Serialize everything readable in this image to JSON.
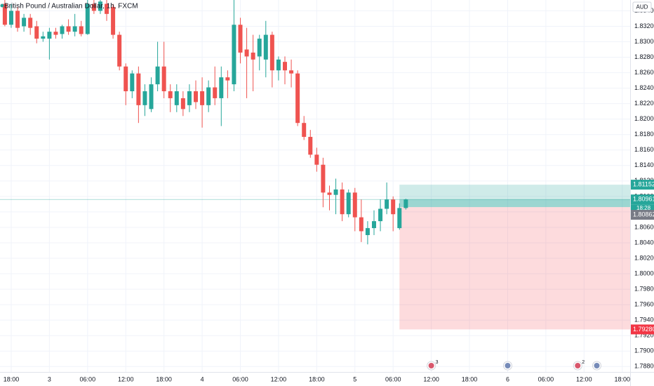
{
  "chart_data": {
    "type": "candlestick",
    "title": "British Pound / Australian Dollar, 1h, FXCM",
    "currency": "AUD",
    "up_color": "#26a69a",
    "down_color": "#ef5350",
    "grid": true,
    "x": [
      -1,
      0,
      1,
      2,
      3,
      4,
      5,
      6,
      7,
      8,
      9,
      10,
      11,
      12,
      13,
      14,
      15,
      16,
      17,
      18,
      19,
      20,
      21,
      22,
      23,
      24,
      25,
      26,
      27,
      28,
      29,
      30,
      31,
      32,
      33,
      34,
      35,
      36,
      37,
      38,
      39,
      40,
      41,
      42,
      43,
      44,
      45,
      46,
      47,
      48,
      49,
      50,
      51,
      52,
      53,
      54,
      55,
      56,
      57,
      58,
      59,
      60,
      61,
      62
    ],
    "open": [
      1.8349,
      1.8322,
      1.834,
      1.832,
      1.8331,
      1.832,
      1.8304,
      1.8304,
      1.8313,
      1.831,
      1.832,
      1.8313,
      1.832,
      1.831,
      1.8349,
      1.834,
      1.8349,
      1.8345,
      1.8309,
      1.8268,
      1.8236,
      1.8259,
      1.8218,
      1.8213,
      1.8245,
      1.8268,
      1.8236,
      1.8218,
      1.8227,
      1.8218,
      1.8236,
      1.8236,
      1.8218,
      1.8241,
      1.8227,
      1.8254,
      1.8245,
      1.8322,
      1.829,
      1.8286,
      1.8281,
      1.8277,
      1.8309,
      1.8263,
      1.8274,
      1.8263,
      1.8259,
      1.8195,
      1.8177,
      1.8154,
      1.8141,
      1.8105,
      1.8102,
      1.8109,
      1.8077,
      1.8105,
      1.8073,
      1.805,
      1.8059,
      1.8068,
      1.8084,
      1.8096,
      1.8059,
      1.8085
    ],
    "high": [
      1.8354,
      1.8349,
      1.8345,
      1.8336,
      1.8336,
      1.8327,
      1.8313,
      1.8318,
      1.8318,
      1.8322,
      1.8329,
      1.8336,
      1.8327,
      1.8354,
      1.8354,
      1.8354,
      1.8354,
      1.8349,
      1.8313,
      1.8272,
      1.8263,
      1.8268,
      1.8245,
      1.8254,
      1.83,
      1.83,
      1.8245,
      1.8245,
      1.8236,
      1.8245,
      1.825,
      1.8254,
      1.825,
      1.8268,
      1.8268,
      1.8263,
      1.8354,
      1.8331,
      1.8318,
      1.8309,
      1.8309,
      1.8327,
      1.8313,
      1.8281,
      1.8281,
      1.8277,
      1.8263,
      1.8204,
      1.8186,
      1.8163,
      1.815,
      1.8114,
      1.8123,
      1.8118,
      1.8109,
      1.8111,
      1.8096,
      1.8068,
      1.8082,
      1.8096,
      1.8118,
      1.81,
      1.8091,
      1.8097
    ],
    "low": [
      1.832,
      1.8318,
      1.8313,
      1.8313,
      1.8309,
      1.8298,
      1.83,
      1.8277,
      1.8304,
      1.8304,
      1.8309,
      1.8307,
      1.8307,
      1.8309,
      1.8336,
      1.8336,
      1.8327,
      1.8304,
      1.8263,
      1.8218,
      1.8227,
      1.8195,
      1.8204,
      1.8209,
      1.8236,
      1.8227,
      1.8209,
      1.8209,
      1.8204,
      1.8209,
      1.8213,
      1.8189,
      1.8209,
      1.8218,
      1.8191,
      1.8227,
      1.8236,
      1.8272,
      1.8227,
      1.8236,
      1.8263,
      1.8254,
      1.8241,
      1.825,
      1.8245,
      1.8241,
      1.8191,
      1.8173,
      1.815,
      1.8132,
      1.8086,
      1.8082,
      1.8077,
      1.8068,
      1.8073,
      1.8055,
      1.8041,
      1.8038,
      1.805,
      1.8055,
      1.8077,
      1.8055,
      1.8057,
      1.8083
    ],
    "close": [
      1.8322,
      1.834,
      1.8318,
      1.8331,
      1.8318,
      1.8304,
      1.8307,
      1.8313,
      1.8309,
      1.832,
      1.8313,
      1.832,
      1.831,
      1.8349,
      1.834,
      1.8352,
      1.8336,
      1.8309,
      1.8268,
      1.8236,
      1.8259,
      1.8218,
      1.8236,
      1.8245,
      1.8268,
      1.8236,
      1.8227,
      1.8236,
      1.8213,
      1.8236,
      1.8222,
      1.8218,
      1.8241,
      1.8227,
      1.8254,
      1.825,
      1.8322,
      1.8286,
      1.8281,
      1.8277,
      1.8304,
      1.8309,
      1.8263,
      1.8277,
      1.8263,
      1.8259,
      1.8195,
      1.8177,
      1.8154,
      1.8141,
      1.8105,
      1.8102,
      1.8109,
      1.8077,
      1.8105,
      1.8073,
      1.8055,
      1.8059,
      1.8068,
      1.8084,
      1.8096,
      1.8077,
      1.8085,
      1.80961
    ],
    "countdown": "18:28",
    "position": {
      "start": 61,
      "entry": 1.80862,
      "target": 1.81152,
      "stop": {
        "value": 1.7928,
        "label": "1.79280"
      }
    },
    "events": [
      {
        "x": 66,
        "count": "3"
      },
      {
        "x": 78
      },
      {
        "x": 89,
        "count": "2"
      },
      {
        "x": 92
      }
    ],
    "xlim": [
      -1.76,
      97.24
    ],
    "ylim": [
      1.7873,
      1.8354
    ],
    "xticks": [
      {
        "value": 0,
        "label": "18:00"
      },
      {
        "value": 6,
        "label": "3"
      },
      {
        "value": 12,
        "label": "06:00"
      },
      {
        "value": 18,
        "label": "12:00"
      },
      {
        "value": 24,
        "label": "18:00"
      },
      {
        "value": 30,
        "label": "4"
      },
      {
        "value": 36,
        "label": "06:00"
      },
      {
        "value": 42,
        "label": "12:00"
      },
      {
        "value": 48,
        "label": "18:00"
      },
      {
        "value": 54,
        "label": "5"
      },
      {
        "value": 60,
        "label": "06:00"
      },
      {
        "value": 66,
        "label": "12:00"
      },
      {
        "value": 72,
        "label": "18:00"
      },
      {
        "value": 78,
        "label": "6"
      },
      {
        "value": 84,
        "label": "06:00"
      },
      {
        "value": 90,
        "label": "12:00"
      },
      {
        "value": 96,
        "label": "18:00"
      }
    ],
    "yticks": [
      {
        "value": 1.834,
        "label": "1.83400"
      },
      {
        "value": 1.832,
        "label": "1.83200"
      },
      {
        "value": 1.83,
        "label": "1.83000"
      },
      {
        "value": 1.828,
        "label": "1.82800"
      },
      {
        "value": 1.826,
        "label": "1.82600"
      },
      {
        "value": 1.824,
        "label": "1.82400"
      },
      {
        "value": 1.822,
        "label": "1.82200"
      },
      {
        "value": 1.82,
        "label": "1.82000"
      },
      {
        "value": 1.818,
        "label": "1.81800"
      },
      {
        "value": 1.816,
        "label": "1.81600"
      },
      {
        "value": 1.814,
        "label": "1.81400"
      },
      {
        "value": 1.812,
        "label": "1.81200"
      },
      {
        "value": 1.81,
        "label": "1.81000"
      },
      {
        "value": 1.808,
        "label": "1.80800"
      },
      {
        "value": 1.806,
        "label": "1.80600"
      },
      {
        "value": 1.804,
        "label": "1.80400"
      },
      {
        "value": 1.802,
        "label": "1.80200"
      },
      {
        "value": 1.8,
        "label": "1.80000"
      },
      {
        "value": 1.798,
        "label": "1.79800"
      },
      {
        "value": 1.796,
        "label": "1.79600"
      },
      {
        "value": 1.794,
        "label": "1.79400"
      },
      {
        "value": 1.792,
        "label": "1.79200"
      },
      {
        "value": 1.79,
        "label": "1.79000"
      },
      {
        "value": 1.788,
        "label": "1.78800"
      }
    ]
  }
}
